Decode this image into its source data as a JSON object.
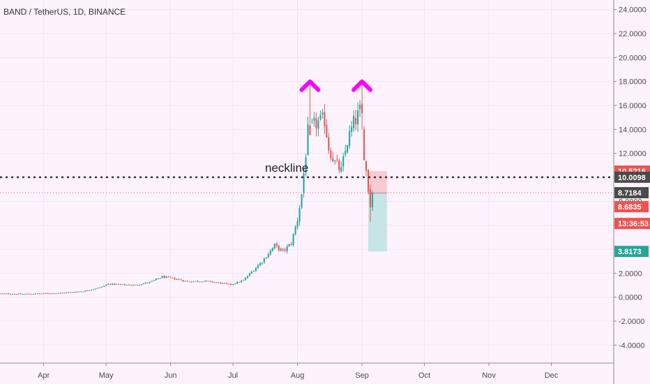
{
  "chart_data": {
    "type": "candlestick",
    "title": "BAND / TetherUS, 1D, BINANCE",
    "ylim": [
      -5.5,
      24.8
    ],
    "y_ticks": [
      {
        "v": 24,
        "label": "24.0000"
      },
      {
        "v": 22,
        "label": "22.0000"
      },
      {
        "v": 20,
        "label": "20.0000"
      },
      {
        "v": 18,
        "label": "18.0000"
      },
      {
        "v": 16,
        "label": "16.0000"
      },
      {
        "v": 14,
        "label": "14.0000"
      },
      {
        "v": 12,
        "label": "12.0000"
      },
      {
        "v": 10,
        "label": "10.0000"
      },
      {
        "v": 8,
        "label": "8.0000"
      },
      {
        "v": 6,
        "label": "6.0000"
      },
      {
        "v": 4,
        "label": "4.0000"
      },
      {
        "v": 2,
        "label": "2.0000"
      },
      {
        "v": 0,
        "label": "0.0000"
      },
      {
        "v": -2,
        "label": "-2.0000"
      },
      {
        "v": -4,
        "label": "-4.0000"
      }
    ],
    "x_ticks": [
      {
        "day": 31,
        "label": "Apr"
      },
      {
        "day": 61,
        "label": "May"
      },
      {
        "day": 92,
        "label": "Jun"
      },
      {
        "day": 122,
        "label": "Jul"
      },
      {
        "day": 153,
        "label": "Aug"
      },
      {
        "day": 184,
        "label": "Sep"
      },
      {
        "day": 214,
        "label": "Oct"
      },
      {
        "day": 245,
        "label": "Nov"
      },
      {
        "day": 275,
        "label": "Dec"
      }
    ],
    "x_domain": [
      10,
      305
    ],
    "anchors": [
      [
        10,
        0.3
      ],
      [
        20,
        0.25
      ],
      [
        30,
        0.3
      ],
      [
        40,
        0.35
      ],
      [
        50,
        0.5
      ],
      [
        58,
        0.8
      ],
      [
        62,
        1.1
      ],
      [
        68,
        1.05
      ],
      [
        75,
        1.0
      ],
      [
        82,
        1.25
      ],
      [
        88,
        1.7
      ],
      [
        95,
        1.5
      ],
      [
        100,
        1.3
      ],
      [
        108,
        1.35
      ],
      [
        115,
        1.2
      ],
      [
        121,
        1.05
      ],
      [
        127,
        1.4
      ],
      [
        132,
        2.3
      ],
      [
        136,
        3.0
      ],
      [
        142,
        4.3
      ],
      [
        146,
        3.8
      ],
      [
        150,
        4.5
      ],
      [
        153,
        6.5
      ],
      [
        155,
        8.6
      ],
      [
        158,
        13.8
      ],
      [
        162,
        14.5
      ],
      [
        166,
        14.8
      ],
      [
        168,
        12.5
      ],
      [
        171,
        11.2
      ],
      [
        174,
        10.5
      ],
      [
        177,
        13.0
      ],
      [
        180,
        14.5
      ],
      [
        183,
        15.5
      ],
      [
        185,
        12.0
      ],
      [
        187,
        9.0
      ]
    ],
    "last_candles": [
      {
        "o": 9.0,
        "h": 9.4,
        "l": 6.3,
        "c": 7.5
      },
      {
        "o": 7.5,
        "h": 8.9,
        "l": 7.2,
        "c": 8.72
      }
    ],
    "neckline": {
      "value": 10.0098,
      "label": "neckline"
    },
    "position_box": {
      "x0": 187,
      "x1": 196,
      "entry": 8.6835,
      "stop": 10.5216,
      "target": 3.8173
    },
    "current_price": 8.7184,
    "peaks": [
      {
        "day": 159,
        "value": 18.0
      },
      {
        "day": 184,
        "value": 18.0
      }
    ],
    "price_tags": [
      {
        "value": 10.5216,
        "label": "10.5216",
        "color": "#ef5350",
        "level": 10.5216
      },
      {
        "value": 10.0098,
        "label": "10.0098",
        "color": "#4a4a4a",
        "level": 10.0098
      },
      {
        "value": 8.7184,
        "label": "8.7184",
        "color": "#4a4a4a",
        "level": 8.7184
      },
      {
        "value": 8.6835,
        "label": "8.6835",
        "color": "#ef5350",
        "level": 7.55
      },
      {
        "value": "13:36:53",
        "label": "13:36:53",
        "color": "#ef5350",
        "level": 6.15
      },
      {
        "value": 3.8173,
        "label": "3.8173",
        "color": "#26a69a",
        "level": 3.8173
      }
    ],
    "colors": {
      "up": "#26a69a",
      "down": "#ef5350",
      "peak": "#ff00ff",
      "background": "#fdf3fd",
      "grid": "#f1e3f1",
      "axis_text": "#4a4a4a"
    }
  }
}
